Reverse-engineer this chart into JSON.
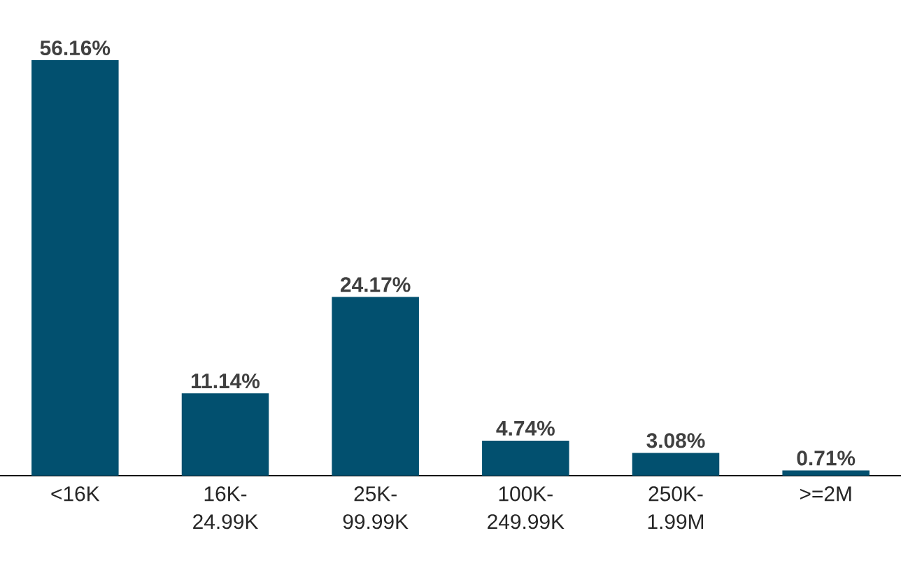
{
  "chart_data": {
    "type": "bar",
    "categories": [
      "<16K",
      "16K-24.99K",
      "25K-99.99K",
      "100K-249.99K",
      "250K-1.99M",
      ">=2M"
    ],
    "values": [
      56.16,
      11.14,
      24.17,
      4.74,
      3.08,
      0.71
    ],
    "value_labels": [
      "56.16%",
      "11.14%",
      "24.17%",
      "4.74%",
      "3.08%",
      "0.71%"
    ],
    "color": "#02506f"
  }
}
